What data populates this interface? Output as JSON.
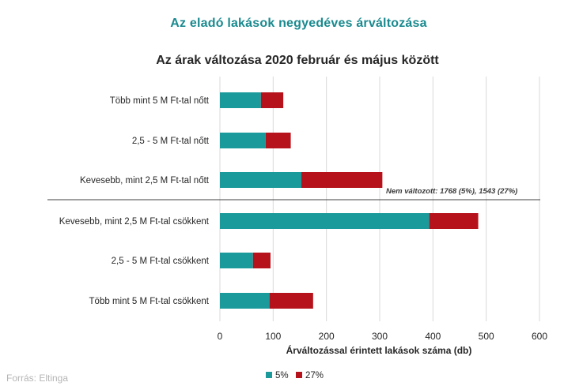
{
  "header": {
    "title": "Az eladó lakások negyedéves árváltozása"
  },
  "footer": {
    "source": "Forrás: Eltinga"
  },
  "chart_data": {
    "type": "bar",
    "orientation": "horizontal",
    "stacked": true,
    "title": "Az árak változása 2020 február és május között",
    "xlabel": "Árváltozással érintett lakások száma (db)",
    "ylabel": "",
    "xlim": [
      0,
      600
    ],
    "ticks": [
      0,
      100,
      200,
      300,
      400,
      500,
      600
    ],
    "tick_labels": [
      "0",
      "100",
      "200",
      "300",
      "400",
      "500",
      "600"
    ],
    "grid": "vertical",
    "legend": "bottom",
    "categories": [
      "Több mint 5 M Ft-tal nőtt",
      "2,5 - 5 M Ft-tal nőtt",
      "Kevesebb, mint 2,5 M Ft-tal nőtt",
      "Kevesebb, mint 2,5 M Ft-tal csökkent",
      "2,5 - 5 M Ft-tal csökkent",
      "Több mint 5 M Ft-tal csökkent"
    ],
    "series": [
      {
        "name": "5%",
        "color": "#1a9a9a",
        "values": [
          77,
          86,
          153,
          393,
          62,
          93
        ]
      },
      {
        "name": "27%",
        "color": "#b5121b",
        "values": [
          42,
          47,
          152,
          92,
          33,
          82
        ]
      }
    ],
    "annotation": "Nem változott: 1768 (5%), 1543 (27%)"
  }
}
